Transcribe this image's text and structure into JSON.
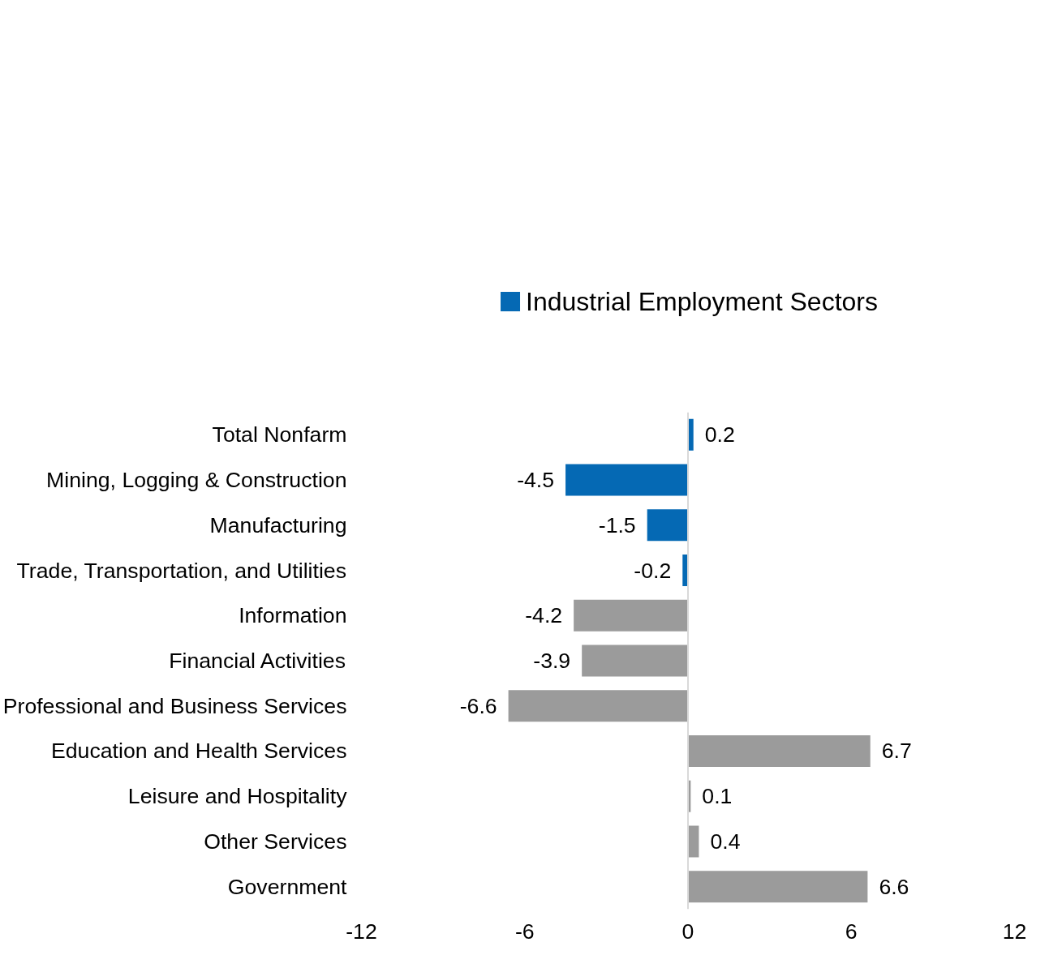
{
  "chart_data": {
    "type": "bar",
    "orientation": "horizontal",
    "categories": [
      "Total Nonfarm",
      "Mining, Logging & Construction",
      "Manufacturing",
      "Trade, Transportation, and Utilities",
      "Information",
      "Financial Activities",
      "Professional and Business Services",
      "Education and Health Services",
      "Leisure and Hospitality",
      "Other Services",
      "Government"
    ],
    "series": [
      {
        "name": "Industrial Employment Sectors",
        "color": "#0569b4",
        "values": [
          0.2,
          -4.5,
          -1.5,
          -0.2,
          null,
          null,
          null,
          null,
          null,
          null,
          null
        ]
      },
      {
        "color": "#9b9b9b",
        "values": [
          null,
          null,
          null,
          null,
          -4.2,
          -3.9,
          -6.6,
          6.7,
          0.1,
          0.4,
          6.6
        ]
      }
    ],
    "xlim": [
      -12,
      12
    ],
    "xticks": [
      -12,
      -6,
      0,
      6,
      12
    ],
    "ref_lines": [
      {
        "axis": "x",
        "value": 0,
        "color": "#d9d9d9"
      }
    ],
    "data_labels": true,
    "grid": false,
    "legend": "top"
  }
}
